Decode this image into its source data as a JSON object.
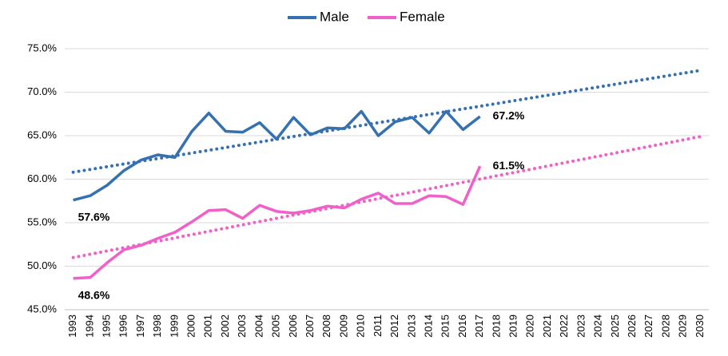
{
  "chart_data": {
    "type": "line",
    "categories": [
      "1993",
      "1994",
      "1995",
      "1996",
      "1997",
      "1998",
      "1999",
      "2000",
      "2001",
      "2002",
      "2003",
      "2004",
      "2005",
      "2006",
      "2007",
      "2008",
      "2009",
      "2010",
      "2011",
      "2012",
      "2013",
      "2014",
      "2015",
      "2016",
      "2017",
      "2018",
      "2019",
      "2020",
      "2021",
      "2022",
      "2023",
      "2024",
      "2025",
      "2026",
      "2027",
      "2028",
      "2029",
      "2030"
    ],
    "series": [
      {
        "name": "Male",
        "color": "#3570b0",
        "values": [
          57.6,
          58.1,
          59.3,
          61.0,
          62.2,
          62.8,
          62.5,
          65.5,
          67.6,
          65.5,
          65.4,
          66.5,
          64.6,
          67.1,
          65.1,
          65.9,
          65.8,
          67.8,
          65.0,
          66.6,
          67.1,
          65.3,
          67.8,
          65.7,
          67.2,
          null,
          null,
          null,
          null,
          null,
          null,
          null,
          null,
          null,
          null,
          null,
          null,
          null
        ],
        "value_labels": [
          "57.6%",
          null,
          null,
          null,
          null,
          null,
          null,
          null,
          null,
          null,
          null,
          null,
          null,
          null,
          null,
          null,
          null,
          null,
          null,
          null,
          null,
          null,
          null,
          null,
          "67.2%",
          null,
          null,
          null,
          null,
          null,
          null,
          null,
          null,
          null,
          null,
          null,
          null,
          null
        ],
        "trend": [
          60.8,
          72.5
        ]
      },
      {
        "name": "Female",
        "color": "#f060c8",
        "values": [
          48.6,
          48.7,
          50.4,
          51.9,
          52.4,
          53.2,
          53.9,
          55.1,
          56.4,
          56.5,
          55.5,
          57.0,
          56.3,
          56.1,
          56.4,
          56.9,
          56.7,
          57.7,
          58.4,
          57.2,
          57.2,
          58.1,
          58.0,
          57.1,
          61.5,
          null,
          null,
          null,
          null,
          null,
          null,
          null,
          null,
          null,
          null,
          null,
          null,
          null
        ],
        "value_labels": [
          "48.6%",
          null,
          null,
          null,
          null,
          null,
          null,
          null,
          null,
          null,
          null,
          null,
          null,
          null,
          null,
          null,
          null,
          null,
          null,
          null,
          null,
          null,
          null,
          null,
          "61.5%",
          null,
          null,
          null,
          null,
          null,
          null,
          null,
          null,
          null,
          null,
          null,
          null,
          null
        ],
        "trend": [
          51.0,
          64.9
        ]
      }
    ],
    "ylim": [
      45,
      75
    ],
    "yticks": [
      {
        "value": 45,
        "label": "45.0%"
      },
      {
        "value": 50,
        "label": "50.0%"
      },
      {
        "value": 55,
        "label": "55.0%"
      },
      {
        "value": 60,
        "label": "60.0%"
      },
      {
        "value": 65,
        "label": "65.0%"
      },
      {
        "value": 70,
        "label": "70.0%"
      },
      {
        "value": 75,
        "label": "75.0%"
      }
    ],
    "grid": true,
    "legend": "top"
  }
}
